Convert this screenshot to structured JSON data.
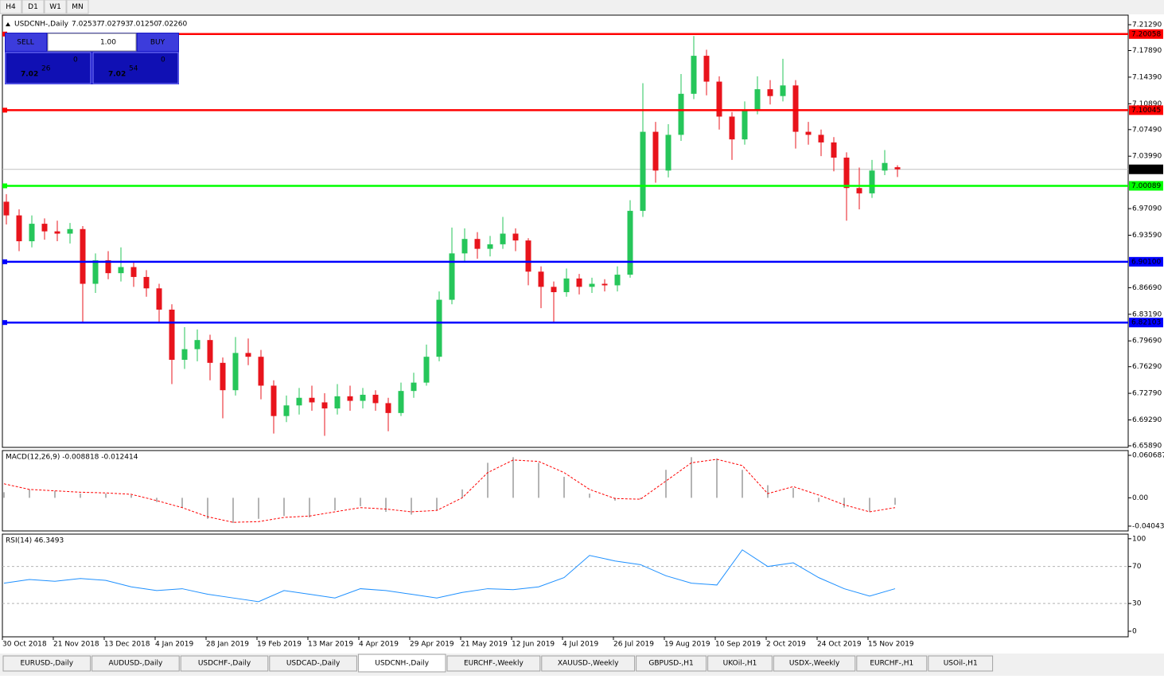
{
  "toolbar": {
    "timeframes": [
      "H4",
      "D1",
      "W1",
      "MN"
    ]
  },
  "trade_panel": {
    "sell": "SELL",
    "lot": "1.00",
    "buy": "BUY",
    "sell_price": {
      "big": "7.02",
      "pips": "26",
      "point": "0"
    },
    "buy_price": {
      "big": "7.02",
      "pips": "54",
      "point": "0"
    }
  },
  "chart_data": [
    {
      "type": "candlestick",
      "title": "USDCNH-,Daily",
      "header_values": [
        "7.02537",
        "7.02793",
        "7.01250",
        "7.02260"
      ],
      "categories": [
        "30 Oct 2018",
        "21 Nov 2018",
        "13 Dec 2018",
        "4 Jan 2019",
        "28 Jan 2019",
        "19 Feb 2019",
        "13 Mar 2019",
        "4 Apr 2019",
        "29 Apr 2019",
        "21 May 2019",
        "12 Jun 2019",
        "4 Jul 2019",
        "26 Jul 2019",
        "19 Aug 2019",
        "10 Sep 2019",
        "2 Oct 2019",
        "24 Oct 2019",
        "15 Nov 2019"
      ],
      "candles": [
        [
          6.98,
          6.99,
          6.95,
          6.962
        ],
        [
          6.962,
          6.97,
          6.915,
          6.928
        ],
        [
          6.928,
          6.962,
          6.92,
          6.951
        ],
        [
          6.951,
          6.958,
          6.93,
          6.941
        ],
        [
          6.941,
          6.955,
          6.928,
          6.938
        ],
        [
          6.938,
          6.952,
          6.925,
          6.944
        ],
        [
          6.944,
          6.948,
          6.82,
          6.872
        ],
        [
          6.872,
          6.912,
          6.86,
          6.903
        ],
        [
          6.903,
          6.915,
          6.878,
          6.886
        ],
        [
          6.886,
          6.92,
          6.875,
          6.894
        ],
        [
          6.894,
          6.9,
          6.868,
          6.881
        ],
        [
          6.881,
          6.89,
          6.855,
          6.866
        ],
        [
          6.866,
          6.872,
          6.82,
          6.838
        ],
        [
          6.838,
          6.845,
          6.74,
          6.772
        ],
        [
          6.772,
          6.815,
          6.76,
          6.786
        ],
        [
          6.786,
          6.812,
          6.77,
          6.798
        ],
        [
          6.798,
          6.805,
          6.745,
          6.768
        ],
        [
          6.768,
          6.775,
          6.695,
          6.732
        ],
        [
          6.732,
          6.802,
          6.725,
          6.781
        ],
        [
          6.781,
          6.8,
          6.765,
          6.776
        ],
        [
          6.776,
          6.785,
          6.72,
          6.738
        ],
        [
          6.738,
          6.745,
          6.675,
          6.698
        ],
        [
          6.698,
          6.725,
          6.69,
          6.712
        ],
        [
          6.712,
          6.735,
          6.7,
          6.722
        ],
        [
          6.722,
          6.738,
          6.705,
          6.716
        ],
        [
          6.716,
          6.728,
          6.672,
          6.708
        ],
        [
          6.708,
          6.74,
          6.7,
          6.724
        ],
        [
          6.724,
          6.738,
          6.705,
          6.718
        ],
        [
          6.718,
          6.735,
          6.708,
          6.726
        ],
        [
          6.726,
          6.732,
          6.705,
          6.715
        ],
        [
          6.715,
          6.722,
          6.678,
          6.702
        ],
        [
          6.702,
          6.742,
          6.698,
          6.731
        ],
        [
          6.731,
          6.755,
          6.722,
          6.742
        ],
        [
          6.742,
          6.792,
          6.738,
          6.776
        ],
        [
          6.776,
          6.862,
          6.77,
          6.851
        ],
        [
          6.851,
          6.946,
          6.845,
          6.912
        ],
        [
          6.912,
          6.945,
          6.9,
          6.931
        ],
        [
          6.931,
          6.94,
          6.905,
          6.918
        ],
        [
          6.918,
          6.935,
          6.908,
          6.924
        ],
        [
          6.924,
          6.96,
          6.918,
          6.938
        ],
        [
          6.938,
          6.945,
          6.915,
          6.929
        ],
        [
          6.929,
          6.932,
          6.87,
          6.888
        ],
        [
          6.888,
          6.895,
          6.84,
          6.868
        ],
        [
          6.868,
          6.875,
          6.822,
          6.861
        ],
        [
          6.861,
          6.892,
          6.855,
          6.879
        ],
        [
          6.879,
          6.885,
          6.858,
          6.868
        ],
        [
          6.868,
          6.88,
          6.86,
          6.872
        ],
        [
          6.872,
          6.878,
          6.862,
          6.87
        ],
        [
          6.87,
          6.895,
          6.862,
          6.884
        ],
        [
          6.884,
          6.982,
          6.88,
          6.968
        ],
        [
          6.968,
          7.136,
          6.96,
          7.072
        ],
        [
          7.072,
          7.085,
          7.005,
          7.021
        ],
        [
          7.021,
          7.082,
          7.012,
          7.068
        ],
        [
          7.068,
          7.148,
          7.06,
          7.122
        ],
        [
          7.122,
          7.198,
          7.115,
          7.172
        ],
        [
          7.172,
          7.18,
          7.12,
          7.138
        ],
        [
          7.138,
          7.145,
          7.075,
          7.092
        ],
        [
          7.092,
          7.098,
          7.035,
          7.062
        ],
        [
          7.062,
          7.112,
          7.055,
          7.101
        ],
        [
          7.101,
          7.145,
          7.095,
          7.128
        ],
        [
          7.128,
          7.14,
          7.108,
          7.119
        ],
        [
          7.119,
          7.168,
          7.112,
          7.133
        ],
        [
          7.133,
          7.14,
          7.05,
          7.072
        ],
        [
          7.072,
          7.085,
          7.055,
          7.068
        ],
        [
          7.068,
          7.075,
          7.04,
          7.058
        ],
        [
          7.058,
          7.065,
          7.02,
          7.038
        ],
        [
          7.038,
          7.045,
          6.955,
          6.998
        ],
        [
          6.998,
          7.025,
          6.97,
          6.991
        ],
        [
          6.991,
          7.035,
          6.985,
          7.021
        ],
        [
          7.021,
          7.048,
          7.015,
          7.031
        ],
        [
          7.02537,
          7.02793,
          7.0125,
          7.0226
        ]
      ],
      "up_color": "#26c65a",
      "down_color": "#e8141c",
      "ylim": [
        6.6568,
        7.2255
      ],
      "yticks": [
        {
          "value": 7.2129,
          "label": "7.21290"
        },
        {
          "value": 7.1789,
          "label": "7.17890"
        },
        {
          "value": 7.1439,
          "label": "7.14390"
        },
        {
          "value": 7.1089,
          "label": "7.10890"
        },
        {
          "value": 7.0749,
          "label": "7.07490"
        },
        {
          "value": 7.0399,
          "label": "7.03990"
        },
        {
          "value": 6.9709,
          "label": "6.97090"
        },
        {
          "value": 6.9359,
          "label": "6.93590"
        },
        {
          "value": 6.8669,
          "label": "6.86690"
        },
        {
          "value": 6.8319,
          "label": "6.83190"
        },
        {
          "value": 6.7969,
          "label": "6.79690"
        },
        {
          "value": 6.7629,
          "label": "6.76290"
        },
        {
          "value": 6.7279,
          "label": "6.72790"
        },
        {
          "value": 6.6929,
          "label": "6.69290"
        },
        {
          "value": 6.6589,
          "label": "6.65890"
        }
      ],
      "levels": [
        {
          "value": 7.20058,
          "label": "7.20058",
          "color": "#ff0000"
        },
        {
          "value": 7.10045,
          "label": "7.10045",
          "color": "#ff0000"
        },
        {
          "value": 7.00089,
          "label": "7.00089",
          "color": "#00ff00"
        },
        {
          "value": 6.901,
          "label": "6.90100",
          "color": "#0000ff"
        },
        {
          "value": 6.82103,
          "label": "6.82103",
          "color": "#0000ff"
        }
      ],
      "current_price": {
        "value": 7.0226,
        "label": "7.02260"
      }
    },
    {
      "type": "macd",
      "title": "MACD(12,26,9) -0.008818 -0.012414",
      "ylim": [
        -0.0473,
        0.0675
      ],
      "yticks": [
        {
          "value": 0.060687,
          "label": "0.060687"
        },
        {
          "value": 0,
          "label": "0.00"
        },
        {
          "value": -0.040432,
          "label": "-0.040432"
        }
      ],
      "series": [
        {
          "color": "#b4b4b4",
          "values": [
            0.008,
            0.012,
            0.01,
            0.006,
            0.006,
            0.004,
            -0.006,
            -0.014,
            -0.03,
            -0.036,
            -0.03,
            -0.026,
            -0.028,
            -0.018,
            -0.012,
            -0.02,
            -0.024,
            -0.018,
            0.012,
            0.05,
            0.058,
            0.05,
            0.03,
            0.006,
            -0.004,
            -0.002,
            0.04,
            0.058,
            0.056,
            0.04,
            0.018,
            0.014,
            -0.006,
            -0.014,
            -0.02,
            -0.01
          ]
        },
        {
          "color": "#ff0000",
          "values": [
            0.02,
            0.012,
            0.01,
            0.008,
            0.007,
            0.005,
            -0.004,
            -0.014,
            -0.027,
            -0.035,
            -0.034,
            -0.028,
            -0.026,
            -0.02,
            -0.014,
            -0.016,
            -0.02,
            -0.018,
            0.0,
            0.036,
            0.054,
            0.052,
            0.036,
            0.012,
            -0.001,
            -0.002,
            0.024,
            0.05,
            0.055,
            0.046,
            0.006,
            0.016,
            0.004,
            -0.01,
            -0.02,
            -0.014
          ]
        }
      ]
    },
    {
      "type": "line",
      "title": "RSI(14) 46.3493",
      "ylim": [
        -6,
        105
      ],
      "yticks": [
        100,
        70,
        30,
        0
      ],
      "levels": [
        70,
        30
      ],
      "series": [
        {
          "color": "#1e90ff",
          "values": [
            52,
            56,
            54,
            57,
            55,
            48,
            44,
            46,
            40,
            36,
            32,
            44,
            40,
            36,
            46,
            44,
            40,
            36,
            42,
            46,
            45,
            48,
            58,
            82,
            76,
            72,
            60,
            52,
            50,
            88,
            70,
            74,
            58,
            46,
            38,
            46
          ]
        }
      ]
    }
  ],
  "tabs": {
    "items": [
      "EURUSD-,Daily",
      "AUDUSD-,Daily",
      "USDCHF-,Daily",
      "USDCAD-,Daily",
      "USDCNH-,Daily",
      "EURCHF-,Weekly",
      "XAUUSD-,Weekly",
      "GBPUSD-,H1",
      "UKOil-,H1",
      "USDX-,Weekly",
      "EURCHF-,H1",
      "USOil-,H1"
    ],
    "active": 4
  }
}
